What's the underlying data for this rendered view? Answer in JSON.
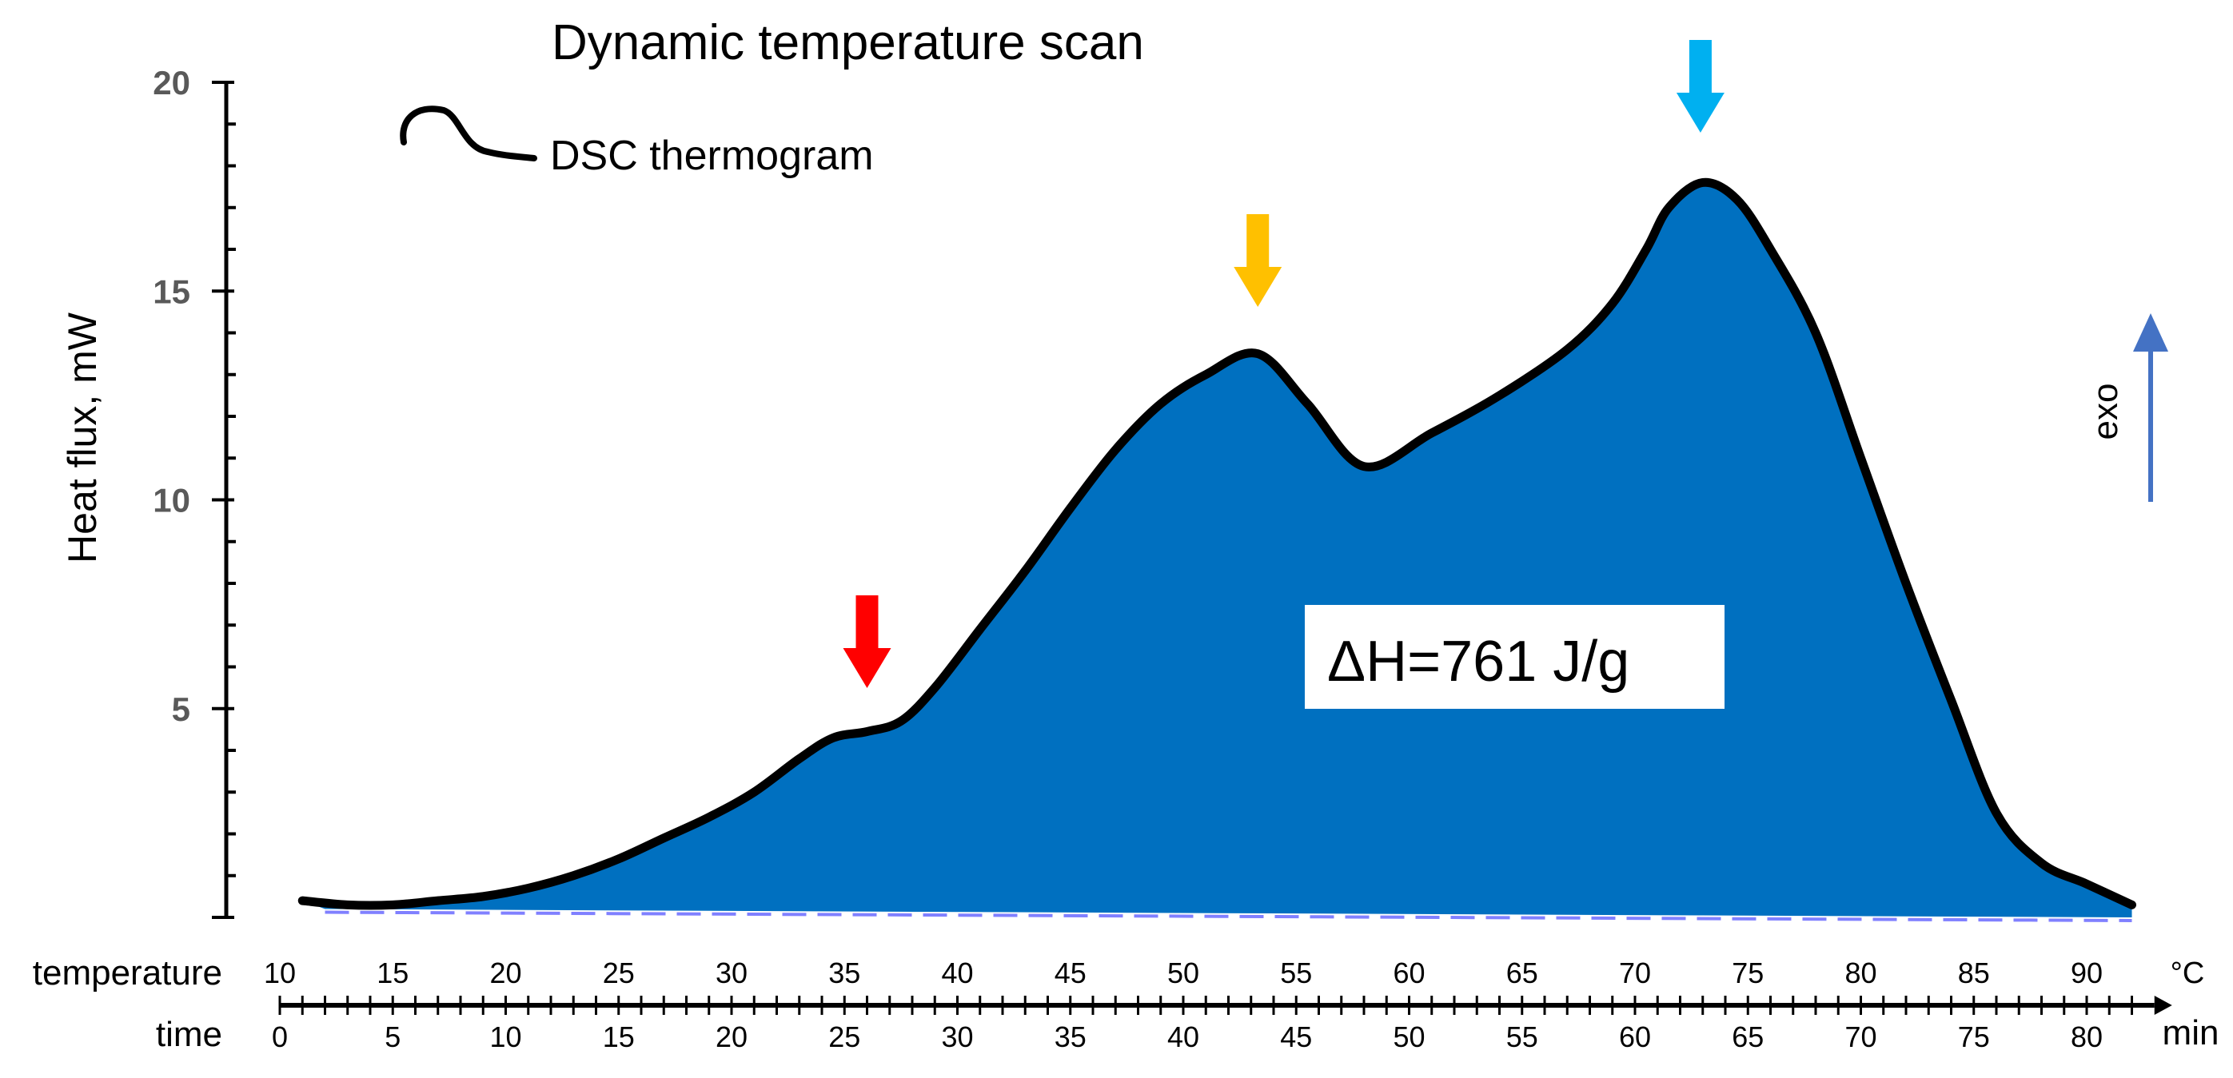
{
  "chart_data": {
    "type": "area",
    "title": "Dynamic temperature scan",
    "legend": {
      "label": "DSC thermogram",
      "placement": "top-left"
    },
    "ylabel": "Heat flux, mW",
    "ylim": [
      0,
      20
    ],
    "yticks": [
      5,
      10,
      15,
      20
    ],
    "xlim": [
      10,
      93
    ],
    "x_axes": [
      {
        "name": "temperature",
        "unit": "°C",
        "ticks": [
          10,
          15,
          20,
          25,
          30,
          35,
          40,
          45,
          50,
          55,
          60,
          65,
          70,
          75,
          80,
          85,
          90
        ]
      },
      {
        "name": "time",
        "unit": "min",
        "ticks": [
          0,
          5,
          10,
          15,
          20,
          25,
          30,
          35,
          40,
          45,
          50,
          55,
          60,
          65,
          70,
          75,
          80
        ]
      }
    ],
    "series": [
      {
        "x": [
          11,
          13,
          15,
          17,
          19,
          21,
          23,
          25,
          27,
          29,
          31,
          33,
          34.5,
          36,
          37.5,
          39,
          41,
          43,
          45,
          47,
          49,
          51,
          53.3,
          55.5,
          58,
          61,
          64,
          67,
          69,
          70.5,
          71.5,
          73,
          74.5,
          76,
          78,
          80,
          82,
          84,
          86,
          88,
          90,
          92
        ],
        "y": [
          0.4,
          0.3,
          0.3,
          0.4,
          0.5,
          0.7,
          1.0,
          1.4,
          1.9,
          2.4,
          3.0,
          3.8,
          4.3,
          4.45,
          4.7,
          5.5,
          6.9,
          8.3,
          9.8,
          11.2,
          12.3,
          13.0,
          13.5,
          12.3,
          10.8,
          11.6,
          12.5,
          13.6,
          14.7,
          16.0,
          17.0,
          17.6,
          17.2,
          16.0,
          14.0,
          11.0,
          8.0,
          5.2,
          2.5,
          1.3,
          0.8,
          0.3
        ]
      }
    ],
    "baseline": {
      "style": "dashed",
      "x": [
        12,
        92
      ],
      "y": [
        0.2,
        0.0
      ]
    },
    "annotations": [
      {
        "text": "ΔH=761 J/g",
        "kind": "label"
      },
      {
        "text": "exo",
        "kind": "direction-arrow"
      },
      {
        "kind": "arrow",
        "x": 36,
        "color": "#ff0000"
      },
      {
        "kind": "arrow",
        "x": 53.3,
        "color": "#ffc000"
      },
      {
        "kind": "arrow",
        "x": 72.9,
        "color": "#00b0f0"
      }
    ],
    "colors": {
      "fill": "#0070c0",
      "line": "#000000",
      "baseline": "#8080ff",
      "exo_arrow": "#4472c4",
      "axis_tick_label": "#595959"
    },
    "grid": false
  }
}
